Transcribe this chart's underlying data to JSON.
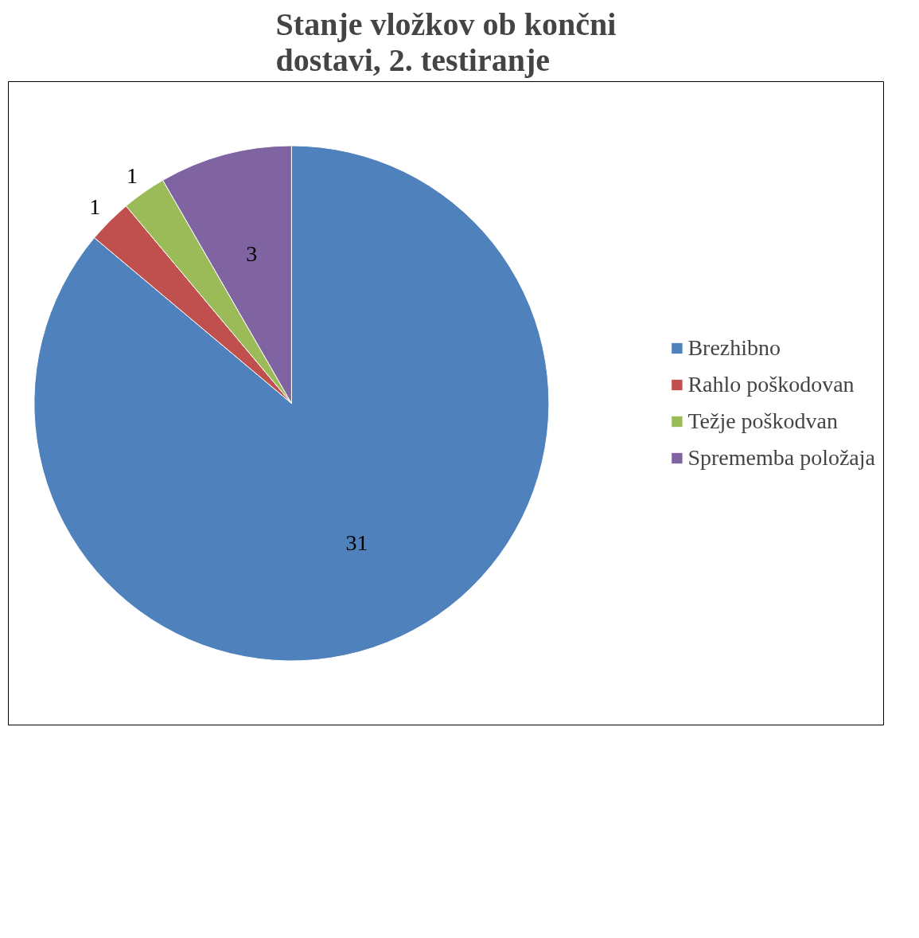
{
  "chart_data": {
    "type": "pie",
    "title": "Stanje vložkov ob končni dostavi, 2. testiranje",
    "categories": [
      "Brezhibno",
      "Rahlo poškodovan",
      "Težje poškodvan",
      "Sprememba položaja"
    ],
    "values": [
      31,
      1,
      1,
      3
    ],
    "colors": [
      "#4f81bd",
      "#c0504d",
      "#9bbb59",
      "#8064a2"
    ],
    "data_labels": true,
    "legend": "right"
  }
}
